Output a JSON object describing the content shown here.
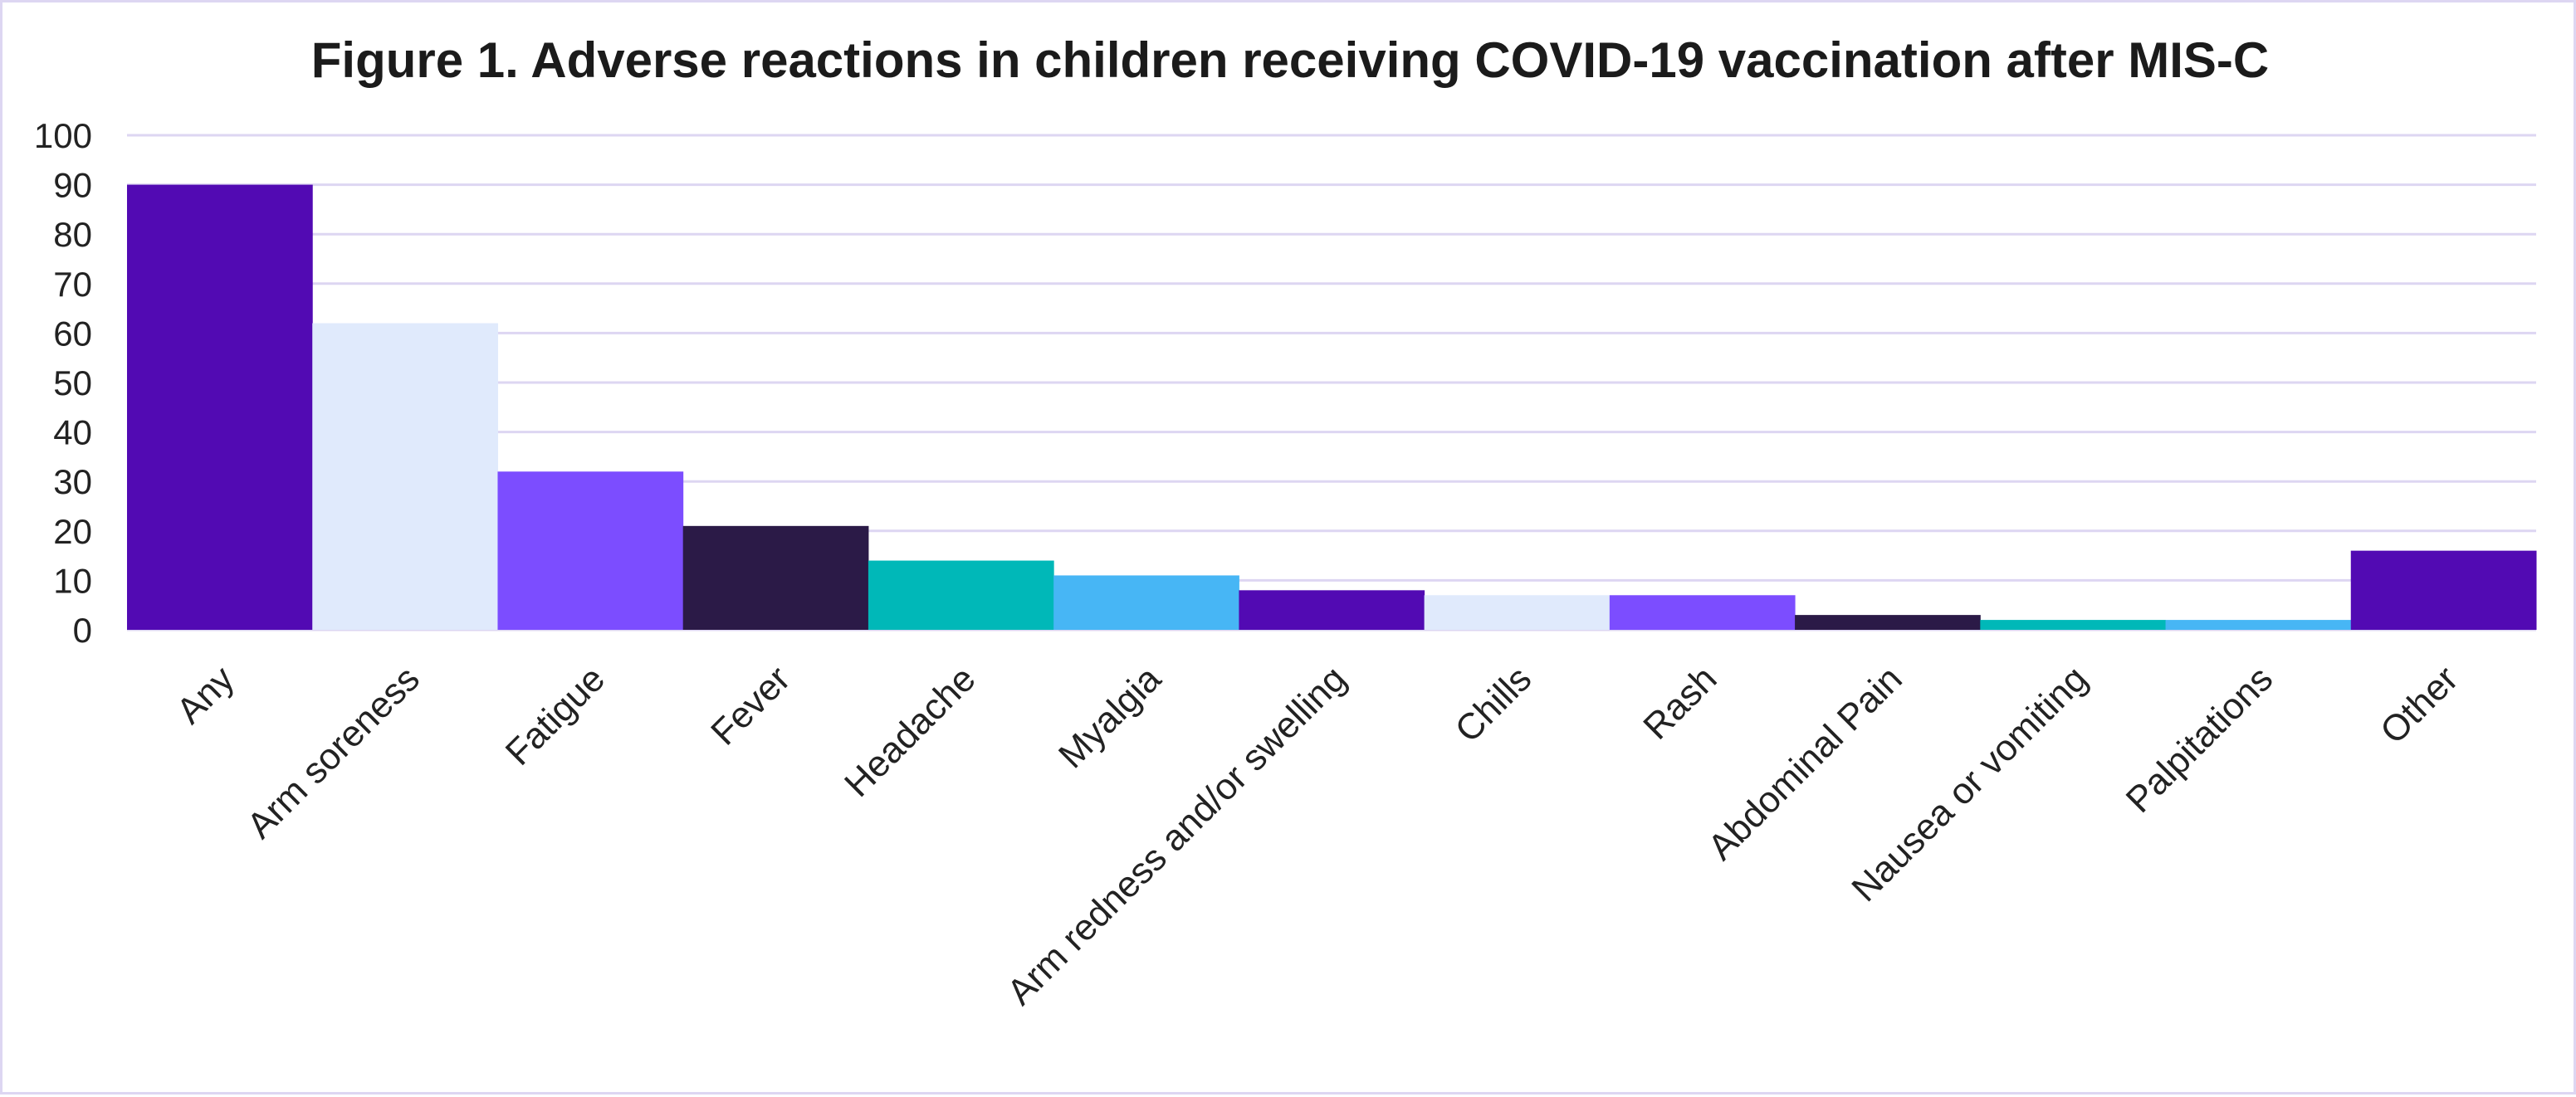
{
  "chart_data": {
    "type": "bar",
    "title": "Figure 1. Adverse reactions in children receiving COVID-19 vaccination after MIS-C",
    "xlabel": "",
    "ylabel": "",
    "ylim": [
      0,
      100
    ],
    "yticks": [
      0,
      10,
      20,
      30,
      40,
      50,
      60,
      70,
      80,
      90,
      100
    ],
    "grid": true,
    "categories": [
      "Any",
      "Arm soreness",
      "Fatigue",
      "Fever",
      "Headache",
      "Myalgia",
      "Arm redness and/or swelling",
      "Chills",
      "Rash",
      "Abdominal Pain",
      "Nausea or vomiting",
      "Palpitations",
      "Other"
    ],
    "values": [
      90,
      62,
      32,
      21,
      14,
      11,
      8,
      7,
      7,
      3,
      2,
      2,
      16
    ],
    "colors": [
      "#520ab3",
      "#e0eafc",
      "#7c4dff",
      "#2b1a47",
      "#00b8b8",
      "#47b6f5",
      "#520ab3",
      "#e0eafc",
      "#7c4dff",
      "#2b1a47",
      "#00b8b8",
      "#47b6f5",
      "#520ab3"
    ]
  }
}
